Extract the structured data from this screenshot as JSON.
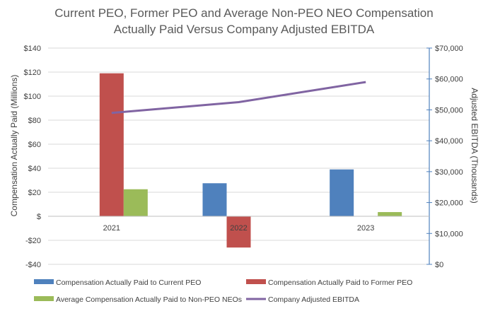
{
  "chart_data": {
    "type": "bar",
    "title_line1": "Current PEO, Former PEO and Average Non-PEO NEO Compensation",
    "title_line2": "Actually Paid Versus Company Adjusted EBITDA",
    "categories": [
      "2021",
      "2022",
      "2023"
    ],
    "ylabel": "Compensation Actually Paid (Millions)",
    "y2label": "Adjusted EBITDA (Thousands)",
    "ylim": [
      -40,
      140
    ],
    "y2lim": [
      0,
      70000
    ],
    "yticks": [
      -40,
      -20,
      0,
      20,
      40,
      60,
      80,
      100,
      120,
      140
    ],
    "ytick_labels": [
      "-$40",
      "-$20",
      "$",
      "$20",
      "$40",
      "$60",
      "$80",
      "$100",
      "$120",
      "$140"
    ],
    "y2ticks": [
      0,
      10000,
      20000,
      30000,
      40000,
      50000,
      60000,
      70000
    ],
    "y2tick_labels": [
      "$0",
      "$10,000",
      "$20,000",
      "$30,000",
      "$40,000",
      "$50,000",
      "$60,000",
      "$70,000"
    ],
    "series": [
      {
        "name": "Compensation Actually Paid to Current PEO",
        "kind": "bar",
        "axis": "left",
        "color": "#4f81bd",
        "values": [
          null,
          27.5,
          39
        ]
      },
      {
        "name": "Compensation Actually Paid to Former PEO",
        "kind": "bar",
        "axis": "left",
        "color": "#c0504d",
        "values": [
          119,
          -26,
          null
        ]
      },
      {
        "name": "Average Compensation Actually Paid to Non-PEO NEOs",
        "kind": "bar",
        "axis": "left",
        "color": "#9bbb59",
        "values": [
          22.5,
          null,
          3.5
        ]
      },
      {
        "name": "Company Adjusted EBITDA",
        "kind": "line",
        "axis": "right",
        "color": "#8064a2",
        "values": [
          49000,
          52500,
          59000
        ]
      }
    ],
    "legend_position": "bottom",
    "grid": true
  }
}
